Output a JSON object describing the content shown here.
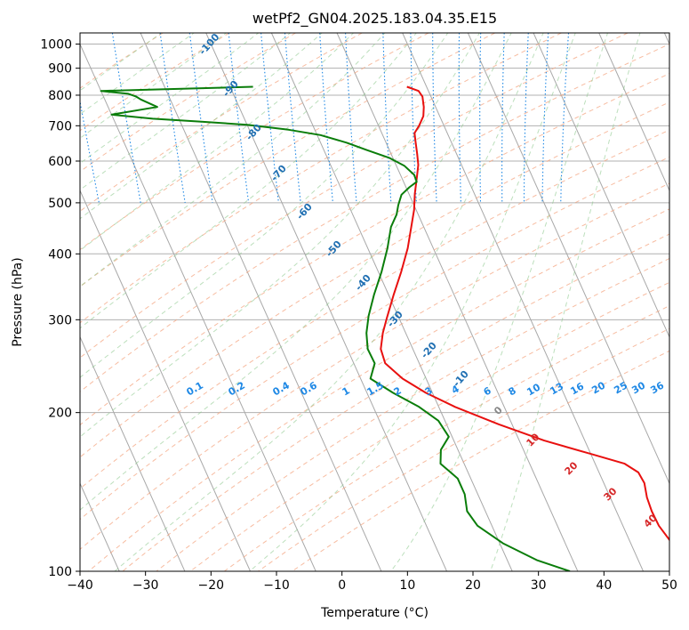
{
  "chart_data": {
    "type": "line",
    "title": "wetPf2_GN04.2025.183.04.35.E15",
    "xlabel": "Temperature (°C)",
    "ylabel": "Pressure (hPa)",
    "xlim": [
      -40,
      50
    ],
    "ylim": [
      1050,
      100
    ],
    "y_scale": "log",
    "grid": true,
    "x_ticks": [
      -40,
      -30,
      -20,
      -10,
      0,
      10,
      20,
      30,
      40,
      50
    ],
    "y_ticks": [
      100,
      200,
      300,
      400,
      500,
      600,
      700,
      800,
      900,
      1000
    ],
    "series": [
      {
        "color": "#e8100f",
        "points": [
          [
            7,
            830
          ],
          [
            8.5,
            815
          ],
          [
            8.7,
            795
          ],
          [
            8.2,
            760
          ],
          [
            7.5,
            730
          ],
          [
            6.2,
            700
          ],
          [
            5.0,
            678
          ],
          [
            4.6,
            655
          ],
          [
            4.0,
            620
          ],
          [
            3.4,
            590
          ],
          [
            2.2,
            555
          ],
          [
            0.9,
            520
          ],
          [
            -0.3,
            485
          ],
          [
            -1.9,
            450
          ],
          [
            -3.9,
            410
          ],
          [
            -6.5,
            370
          ],
          [
            -9.2,
            335
          ],
          [
            -11.8,
            303
          ],
          [
            -13.5,
            283
          ],
          [
            -14.9,
            264
          ],
          [
            -15.2,
            248
          ],
          [
            -13.6,
            232
          ],
          [
            -11,
            218
          ],
          [
            -7.5,
            205
          ],
          [
            -2,
            190
          ],
          [
            3.8,
            177
          ],
          [
            10,
            167
          ],
          [
            14.5,
            160
          ],
          [
            16,
            154
          ],
          [
            16.2,
            147
          ],
          [
            15.6,
            138
          ],
          [
            15.4,
            130
          ],
          [
            15.5,
            122
          ],
          [
            16.4,
            112
          ],
          [
            17.5,
            100
          ]
        ]
      },
      {
        "color": "#0a7d0a",
        "points": [
          [
            -16.5,
            830
          ],
          [
            -40,
            815
          ],
          [
            -36,
            805
          ],
          [
            -35,
            795
          ],
          [
            -34.5,
            785
          ],
          [
            -32.5,
            760
          ],
          [
            -40,
            735
          ],
          [
            -34,
            722
          ],
          [
            -27,
            713
          ],
          [
            -20,
            703
          ],
          [
            -14,
            688
          ],
          [
            -9.5,
            672
          ],
          [
            -6,
            650
          ],
          [
            -3.5,
            630
          ],
          [
            -0.5,
            608
          ],
          [
            1.2,
            588
          ],
          [
            2.1,
            565
          ],
          [
            2.0,
            548
          ],
          [
            0.5,
            535
          ],
          [
            -1.2,
            518
          ],
          [
            -2.4,
            495
          ],
          [
            -3.3,
            475
          ],
          [
            -5,
            450
          ],
          [
            -7,
            410
          ],
          [
            -9.5,
            370
          ],
          [
            -12.2,
            335
          ],
          [
            -14.5,
            305
          ],
          [
            -16.0,
            283
          ],
          [
            -16.9,
            264
          ],
          [
            -16.8,
            248
          ],
          [
            -18.5,
            232
          ],
          [
            -16,
            218
          ],
          [
            -13,
            205
          ],
          [
            -11,
            193
          ],
          [
            -10.5,
            180
          ],
          [
            -12.6,
            170
          ],
          [
            -13.6,
            160
          ],
          [
            -12.0,
            150
          ],
          [
            -12.0,
            140
          ],
          [
            -12.8,
            130
          ],
          [
            -12.2,
            122
          ],
          [
            -9.5,
            113
          ],
          [
            -5.5,
            105
          ],
          [
            -1.2,
            100
          ]
        ]
      }
    ],
    "mixing_ratio_labels": [
      "0.1",
      "0.2",
      "0.4",
      "0.6",
      "1",
      "1.5",
      "2",
      "3",
      "4",
      "6",
      "8",
      "10",
      "13",
      "16",
      "20",
      "25",
      "30",
      "36"
    ],
    "dry_adiabat_labels": [
      "-100",
      "-90",
      "-80",
      "-70",
      "-60",
      "-50",
      "-40",
      "-30",
      "-20",
      "-10"
    ],
    "moist_adiabat_labels": [
      "0",
      "10",
      "20",
      "30",
      "40"
    ],
    "colors": {
      "temperature": "#e8100f",
      "dewpoint": "#0a7d0a",
      "mixing_ratio": "#1e88e5",
      "dry_adiabat": "#1f6fb2",
      "moist_adiabat": "#d62728",
      "isotherm": "#888888"
    }
  }
}
